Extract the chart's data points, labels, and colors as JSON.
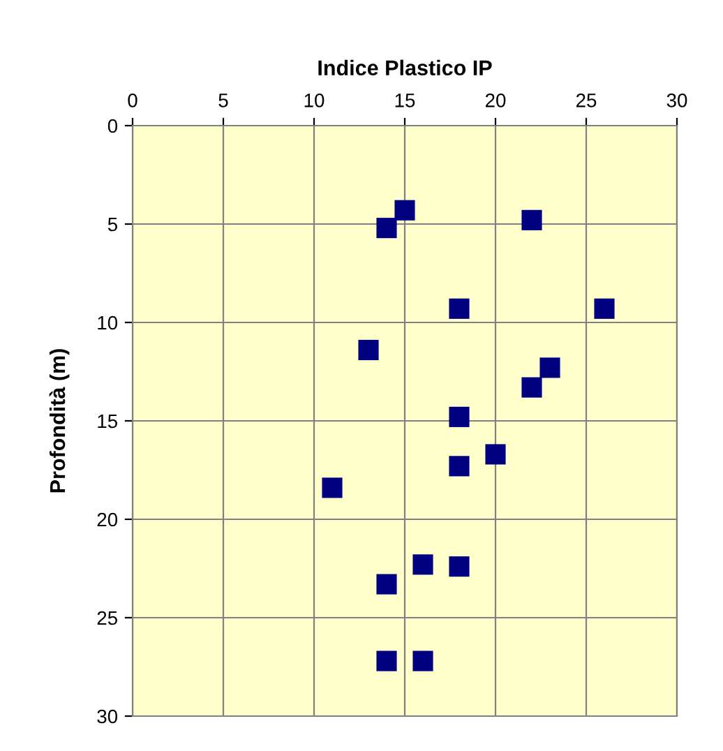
{
  "chart_data": {
    "type": "scatter",
    "title": "Indice Plastico IP",
    "ylabel": "Profondità (m)",
    "x": [
      15,
      22,
      14,
      18,
      26,
      13,
      23,
      22,
      18,
      20,
      18,
      11,
      16,
      18,
      14,
      14,
      16
    ],
    "values": [
      4.3,
      4.8,
      5.2,
      9.3,
      9.3,
      11.4,
      12.3,
      13.3,
      14.8,
      16.7,
      17.3,
      18.4,
      22.3,
      22.4,
      23.3,
      27.2,
      27.2
    ],
    "color": "#000080",
    "marker": "square",
    "xlim": [
      0,
      30
    ],
    "xticks": [
      0,
      5,
      10,
      15,
      20,
      25,
      30
    ],
    "ylim": [
      30,
      0
    ],
    "yticks": [
      0,
      5,
      10,
      15,
      20,
      25,
      30
    ],
    "grid": true
  }
}
